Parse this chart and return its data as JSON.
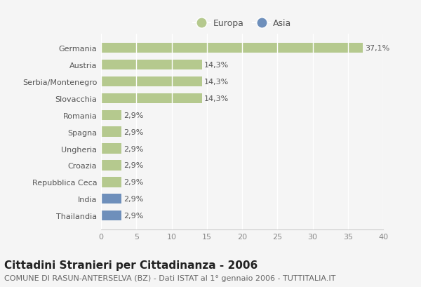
{
  "categories": [
    "Thailandia",
    "India",
    "Repubblica Ceca",
    "Croazia",
    "Ungheria",
    "Spagna",
    "Romania",
    "Slovacchia",
    "Serbia/Montenegro",
    "Austria",
    "Germania"
  ],
  "values": [
    2.9,
    2.9,
    2.9,
    2.9,
    2.9,
    2.9,
    2.9,
    14.3,
    14.3,
    14.3,
    37.1
  ],
  "labels": [
    "2,9%",
    "2,9%",
    "2,9%",
    "2,9%",
    "2,9%",
    "2,9%",
    "2,9%",
    "14,3%",
    "14,3%",
    "14,3%",
    "37,1%"
  ],
  "colors": [
    "#6e8fbb",
    "#6e8fbb",
    "#b5c98e",
    "#b5c98e",
    "#b5c98e",
    "#b5c98e",
    "#b5c98e",
    "#b5c98e",
    "#b5c98e",
    "#b5c98e",
    "#b5c98e"
  ],
  "europa_color": "#b5c98e",
  "asia_color": "#6e8fbb",
  "background_color": "#f5f5f5",
  "grid_color": "#ffffff",
  "title": "Cittadini Stranieri per Cittadinanza - 2006",
  "subtitle": "COMUNE DI RASUN-ANTERSELVA (BZ) - Dati ISTAT al 1° gennaio 2006 - TUTTITALIA.IT",
  "xlim": [
    0,
    40
  ],
  "xticks": [
    0,
    5,
    10,
    15,
    20,
    25,
    30,
    35,
    40
  ],
  "title_fontsize": 11,
  "subtitle_fontsize": 8,
  "label_fontsize": 8,
  "tick_fontsize": 8,
  "legend_fontsize": 9
}
